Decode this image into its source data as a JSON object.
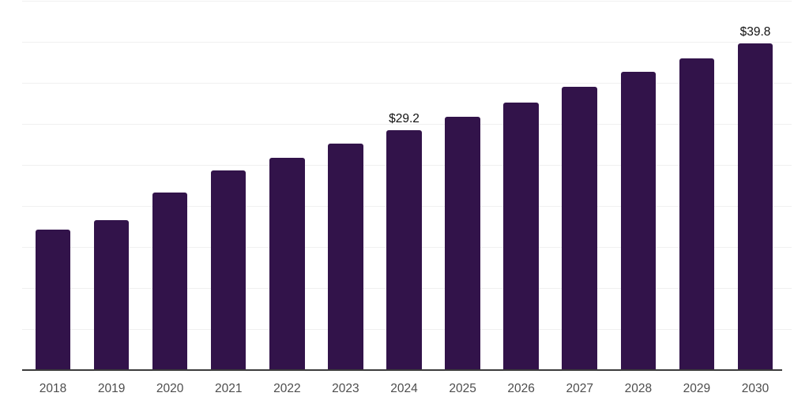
{
  "chart_data": {
    "type": "bar",
    "title": "",
    "categories": [
      "2018",
      "2019",
      "2020",
      "2021",
      "2022",
      "2023",
      "2024",
      "2025",
      "2026",
      "2027",
      "2028",
      "2029",
      "2030"
    ],
    "values": [
      17.1,
      18.3,
      21.6,
      24.3,
      25.9,
      27.6,
      29.2,
      30.9,
      32.6,
      34.5,
      36.3,
      38.0,
      39.8
    ],
    "data_labels": [
      {
        "category": "2024",
        "text": "$29.2"
      },
      {
        "category": "2030",
        "text": "$39.8"
      }
    ],
    "value_prefix": "$",
    "xlabel": "",
    "ylabel": "",
    "ylim": [
      0,
      45
    ],
    "gridline_step": 5,
    "grid": true,
    "legend": "none",
    "colors": {
      "bar": "#32134a",
      "gridline": "#f0f0f0",
      "axis_line": "#3c3c3c",
      "tick_label": "#4d4d4d",
      "data_label": "#111111"
    }
  }
}
